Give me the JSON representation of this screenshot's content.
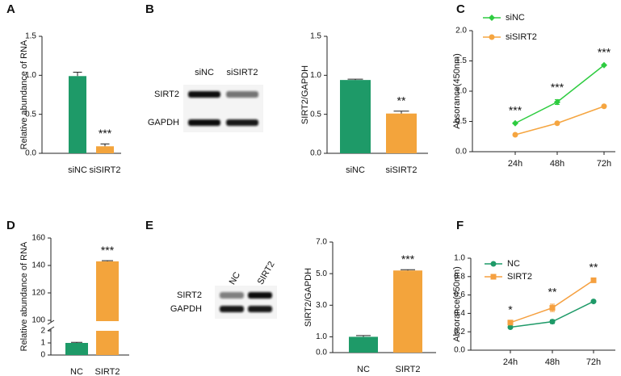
{
  "chart_data": [
    {
      "panel": "A",
      "type": "bar",
      "y_label": "Relative abundance of RNA",
      "categories": [
        "siNC",
        "siSIRT2"
      ],
      "values": [
        0.99,
        0.09
      ],
      "errors": [
        0.05,
        0.03
      ],
      "colors": [
        "#1e9a68",
        "#f3a43c"
      ],
      "significance": [
        null,
        "***"
      ],
      "ylim": [
        0,
        1.5
      ],
      "yticks": [
        {
          "value": 0,
          "label": "0.0"
        },
        {
          "value": 0.5,
          "label": "0.5"
        },
        {
          "value": 1,
          "label": "1.0"
        },
        {
          "value": 1.5,
          "label": "1.5"
        }
      ]
    },
    {
      "panel": "B",
      "type": "bar",
      "blot": {
        "lanes": [
          "siNC",
          "siSIRT2"
        ],
        "bands": [
          "SIRT2",
          "GAPDH"
        ]
      },
      "y_label": "SIRT2/GAPDH",
      "categories": [
        "siNC",
        "siSIRT2"
      ],
      "values": [
        0.94,
        0.51
      ],
      "errors": [
        0.01,
        0.03
      ],
      "colors": [
        "#1e9a68",
        "#f3a43c"
      ],
      "significance": [
        null,
        "**"
      ],
      "ylim": [
        0,
        1.5
      ],
      "yticks": [
        {
          "value": 0,
          "label": "0.0"
        },
        {
          "value": 0.5,
          "label": "0.5"
        },
        {
          "value": 1,
          "label": "1.0"
        },
        {
          "value": 1.5,
          "label": "1.5"
        }
      ]
    },
    {
      "panel": "C",
      "type": "line",
      "y_label": "Absorance(450nm)",
      "categories": [
        "24h",
        "48h",
        "72h"
      ],
      "series": [
        {
          "name": "siNC",
          "color": "#2ecc40",
          "marker": "diamond",
          "values": [
            0.47,
            0.82,
            1.43
          ],
          "errors": [
            0.01,
            0.04,
            0.01
          ]
        },
        {
          "name": "siSIRT2",
          "color": "#f5a540",
          "marker": "circle",
          "values": [
            0.28,
            0.47,
            0.75
          ],
          "errors": [
            0.01,
            0.01,
            0.01
          ]
        }
      ],
      "significance": [
        "***",
        "***",
        "***"
      ],
      "ylim": [
        0,
        2
      ],
      "yticks": [
        {
          "value": 0,
          "label": "0.0"
        },
        {
          "value": 0.5,
          "label": "0.5"
        },
        {
          "value": 1,
          "label": "1.0"
        },
        {
          "value": 1.5,
          "label": "1.5"
        },
        {
          "value": 2,
          "label": "2.0"
        }
      ]
    },
    {
      "panel": "D",
      "type": "bar",
      "y_label": "Relative abundance of RNA",
      "categories": [
        "NC",
        "SIRT2"
      ],
      "values": [
        1.0,
        143
      ],
      "errors": [
        0.05,
        0.5
      ],
      "colors": [
        "#1e9a68",
        "#f3a43c"
      ],
      "significance": [
        null,
        "***"
      ],
      "ylim": [
        0,
        160
      ],
      "ybreak": [
        2,
        100
      ],
      "yticks": [
        0,
        1,
        2,
        100,
        120,
        140,
        160
      ]
    },
    {
      "panel": "E",
      "type": "bar",
      "blot": {
        "lanes": [
          "NC",
          "SIRT2"
        ],
        "bands": [
          "SIRT2",
          "GAPDH"
        ]
      },
      "y_label": "SIRT2/GAPDH",
      "categories": [
        "NC",
        "SIRT2"
      ],
      "values": [
        1.0,
        5.2
      ],
      "errors": [
        0.08,
        0.05
      ],
      "colors": [
        "#1e9a68",
        "#f3a43c"
      ],
      "significance": [
        null,
        "***"
      ],
      "ylim": [
        0,
        7
      ],
      "yticks": [
        {
          "value": 0,
          "label": "0.0"
        },
        {
          "value": 1,
          "label": "1.0"
        },
        {
          "value": 3,
          "label": "3.0"
        },
        {
          "value": 5,
          "label": "5.0"
        },
        {
          "value": 7,
          "label": "7.0"
        }
      ]
    },
    {
      "panel": "F",
      "type": "line",
      "y_label": "Absorance(450nm)",
      "categories": [
        "24h",
        "48h",
        "72h"
      ],
      "series": [
        {
          "name": "NC",
          "color": "#1e9a68",
          "marker": "circle",
          "values": [
            0.25,
            0.31,
            0.53
          ],
          "errors": [
            0.01,
            0.02,
            0.01
          ]
        },
        {
          "name": "SIRT2",
          "color": "#f5a040",
          "marker": "square",
          "values": [
            0.3,
            0.46,
            0.76
          ],
          "errors": [
            0.01,
            0.04,
            0.01
          ]
        }
      ],
      "significance": [
        "*",
        "**",
        "**"
      ],
      "ylim": [
        0,
        1
      ],
      "yticks": [
        {
          "value": 0,
          "label": "0.0"
        },
        {
          "value": 0.2,
          "label": "0.2"
        },
        {
          "value": 0.4,
          "label": "0.4"
        },
        {
          "value": 0.6,
          "label": "0.6"
        },
        {
          "value": 0.8,
          "label": "0.8"
        },
        {
          "value": 1,
          "label": "1.0"
        }
      ]
    }
  ]
}
